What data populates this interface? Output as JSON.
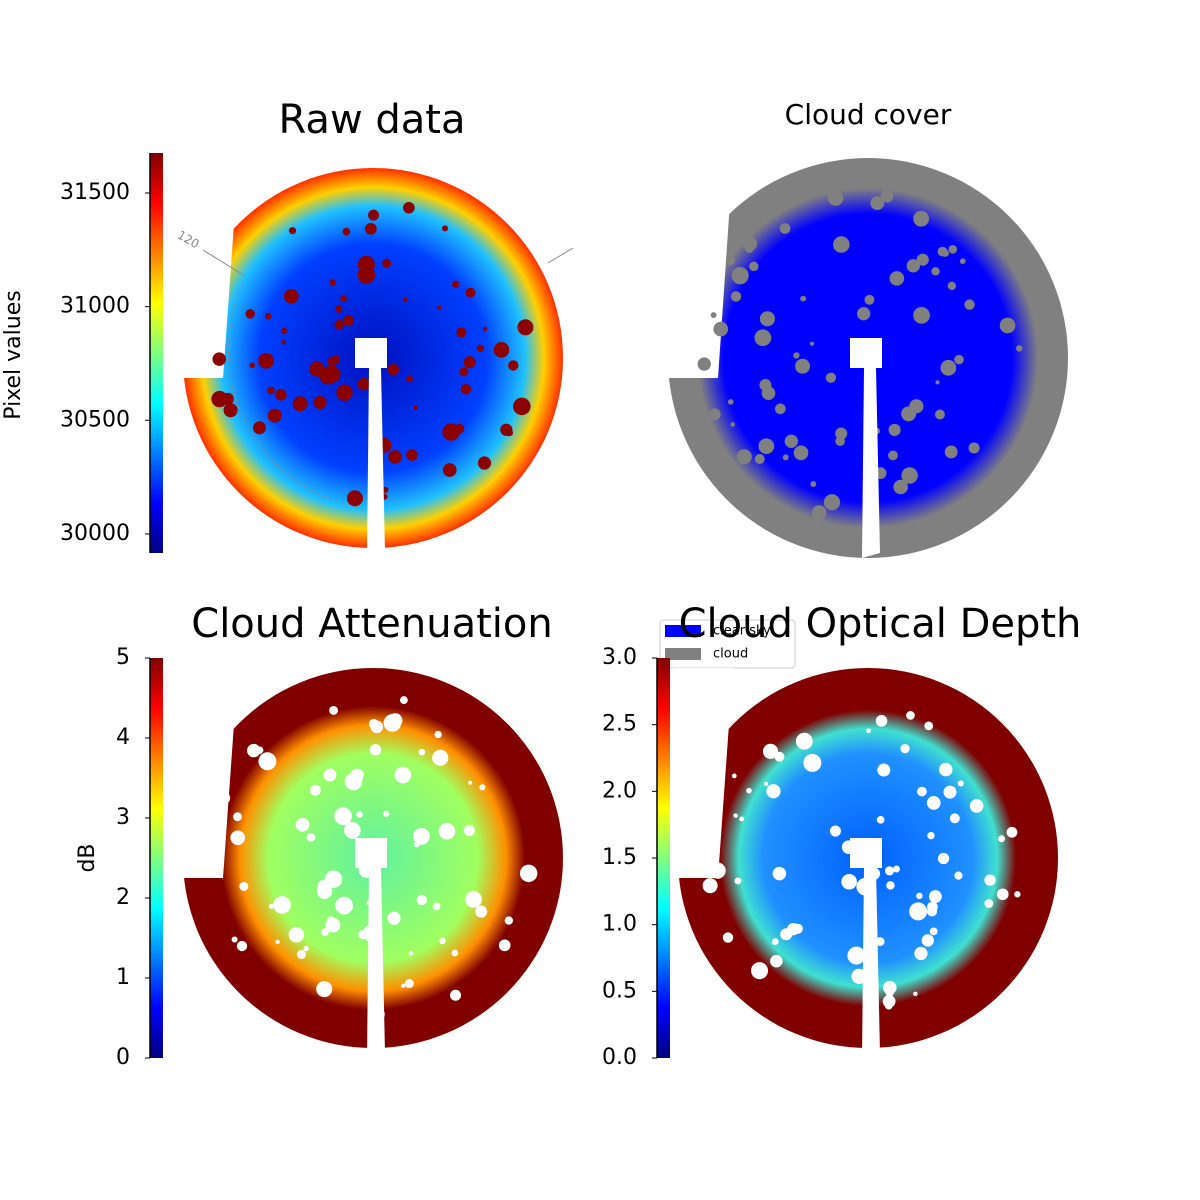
{
  "chart_data": [
    {
      "type": "image",
      "title": "Raw data",
      "colorbar_label": "Pixel values",
      "colormap": "jet",
      "ylim": [
        29916,
        31676
      ],
      "yticks": [
        30000,
        30500,
        31000,
        31500
      ],
      "annotation": "120"
    },
    {
      "type": "image",
      "title": "Cloud cover",
      "series": [
        {
          "name": "clear sky",
          "color": "#0000ff"
        },
        {
          "name": "cloud",
          "color": "#808080"
        }
      ]
    },
    {
      "type": "image",
      "title": "Cloud Attenuation",
      "colorbar_label": "dB",
      "colormap": "jet",
      "ylim": [
        0,
        5
      ],
      "yticks": [
        0,
        1,
        2,
        3,
        4,
        5
      ]
    },
    {
      "type": "image",
      "title": "Cloud Optical Depth",
      "colormap": "jet",
      "ylim": [
        0,
        3
      ],
      "yticks": [
        {
          "value": 0,
          "label": "0.0"
        },
        0.5,
        {
          "value": 1,
          "label": "1.0"
        },
        1.5,
        {
          "value": 2,
          "label": "2.0"
        },
        2.5,
        {
          "value": 3,
          "label": "3.0"
        }
      ]
    }
  ]
}
